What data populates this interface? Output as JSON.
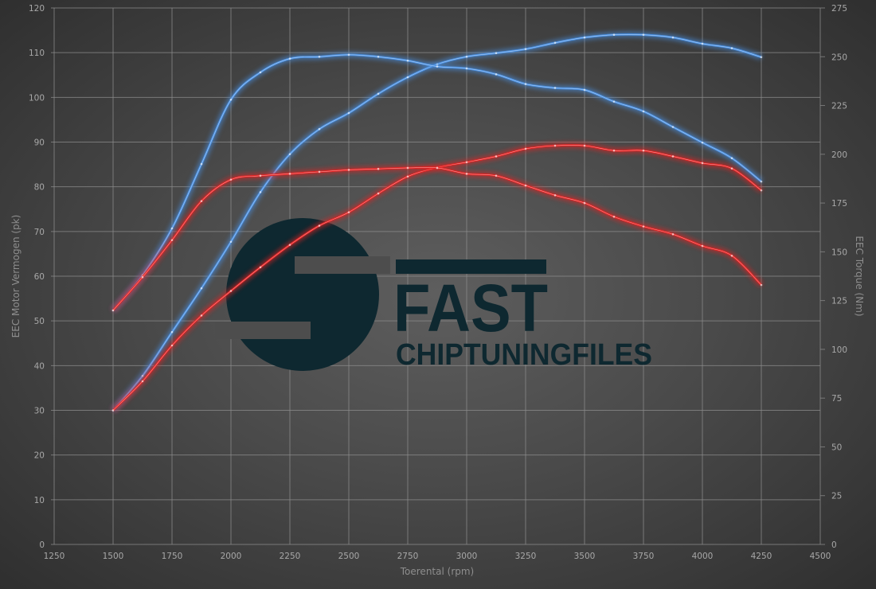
{
  "chart_data": {
    "type": "line",
    "xlabel": "Toerental (rpm)",
    "ylabel_left": "EEC Motor Vermogen (pk)",
    "ylabel_right": "EEC Torque (Nm)",
    "xlim": [
      1250,
      4500
    ],
    "ylim_left": [
      0,
      120
    ],
    "ylim_right": [
      0,
      275
    ],
    "x_ticks": [
      1250,
      1500,
      1750,
      2000,
      2250,
      2500,
      2750,
      3000,
      3250,
      3500,
      3750,
      4000,
      4250,
      4500
    ],
    "y_ticks_left": [
      0,
      10,
      20,
      30,
      40,
      50,
      60,
      70,
      80,
      90,
      100,
      110,
      120
    ],
    "y_ticks_right": [
      0,
      25,
      50,
      75,
      100,
      125,
      150,
      175,
      200,
      225,
      250,
      275
    ],
    "grid": true,
    "legend": "none",
    "x": [
      1500,
      1625,
      1750,
      1875,
      2000,
      2125,
      2250,
      2375,
      2500,
      2625,
      2750,
      2875,
      3000,
      3125,
      3250,
      3375,
      3500,
      3625,
      3750,
      3875,
      4000,
      4125,
      4250
    ],
    "series": [
      {
        "axis": "left",
        "color": "#4a90e2",
        "values": [
          30,
          37.7,
          47.5,
          57.3,
          67.7,
          78.8,
          87.3,
          92.9,
          96.5,
          100.8,
          104.5,
          107.4,
          109.1,
          109.9,
          110.8,
          112.2,
          113.4,
          114,
          114,
          113.4,
          112,
          111,
          109
        ]
      },
      {
        "axis": "right",
        "color": "#4a90e2",
        "values": [
          120,
          138,
          162,
          195,
          228,
          242,
          249,
          250,
          251,
          250,
          248,
          245,
          244,
          241,
          236,
          234,
          233,
          227,
          222,
          214,
          206,
          198,
          186
        ]
      },
      {
        "axis": "left",
        "color": "#e32222",
        "values": [
          30,
          36.5,
          44.5,
          51.2,
          56.7,
          62,
          67,
          71.3,
          74.3,
          78.5,
          82.3,
          84.3,
          85.5,
          86.8,
          88.5,
          89.2,
          89.2,
          88.1,
          88.1,
          86.8,
          85.3,
          84.1,
          79.2
        ]
      },
      {
        "axis": "right",
        "color": "#e32222",
        "values": [
          120,
          137,
          156,
          176,
          187,
          189,
          190,
          191,
          192,
          192.5,
          193,
          193,
          190,
          189,
          184,
          179,
          175,
          168,
          163,
          159,
          153,
          148,
          133
        ]
      }
    ]
  },
  "watermark": {
    "word": "FAST",
    "subtitle": "CHIPTUNINGFILES",
    "color": "#0e2830"
  }
}
